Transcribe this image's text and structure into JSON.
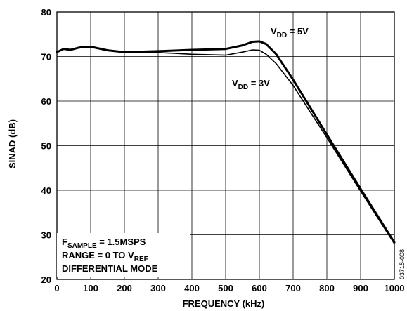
{
  "chart_data": {
    "type": "line",
    "xlabel": "FREQUENCY (kHz)",
    "ylabel": "SINAD (dB)",
    "xlim": [
      0,
      1000
    ],
    "ylim": [
      20,
      80
    ],
    "xticks": [
      "0",
      "100",
      "200",
      "300",
      "400",
      "500",
      "600",
      "700",
      "800",
      "900",
      "1000"
    ],
    "yticks": [
      "20",
      "30",
      "40",
      "50",
      "60",
      "70",
      "80"
    ],
    "grid": true,
    "series": [
      {
        "name_parts": {
          "main": "V",
          "sub": "DD",
          "rest": " = 5V"
        },
        "x": [
          0,
          20,
          40,
          60,
          80,
          100,
          150,
          200,
          300,
          400,
          500,
          550,
          580,
          600,
          620,
          650,
          700,
          800,
          900,
          1000
        ],
        "y": [
          71.0,
          71.7,
          71.5,
          71.9,
          72.2,
          72.2,
          71.4,
          71.0,
          71.2,
          71.5,
          71.7,
          72.5,
          73.3,
          73.4,
          72.8,
          70.5,
          64.8,
          52.5,
          40.3,
          28.3
        ]
      },
      {
        "name_parts": {
          "main": "V",
          "sub": "DD",
          "rest": " = 3V"
        },
        "x": [
          0,
          20,
          40,
          60,
          80,
          100,
          150,
          200,
          300,
          400,
          500,
          550,
          580,
          600,
          620,
          650,
          700,
          800,
          900,
          1000
        ],
        "y": [
          71.0,
          71.7,
          71.5,
          71.9,
          72.2,
          72.2,
          71.4,
          71.0,
          70.9,
          70.5,
          70.3,
          71.0,
          71.5,
          71.4,
          70.5,
          68.4,
          63.5,
          51.8,
          39.8,
          28.0
        ]
      }
    ],
    "annotations": {
      "sample_rate": {
        "main": "F",
        "sub": "SAMPLE",
        "rest": " = 1.5MSPS"
      },
      "range": {
        "main": "RANGE = 0 TO V",
        "sub": "REF"
      },
      "mode": "DIFFERENTIAL MODE",
      "figure_code": "03715-008"
    }
  }
}
